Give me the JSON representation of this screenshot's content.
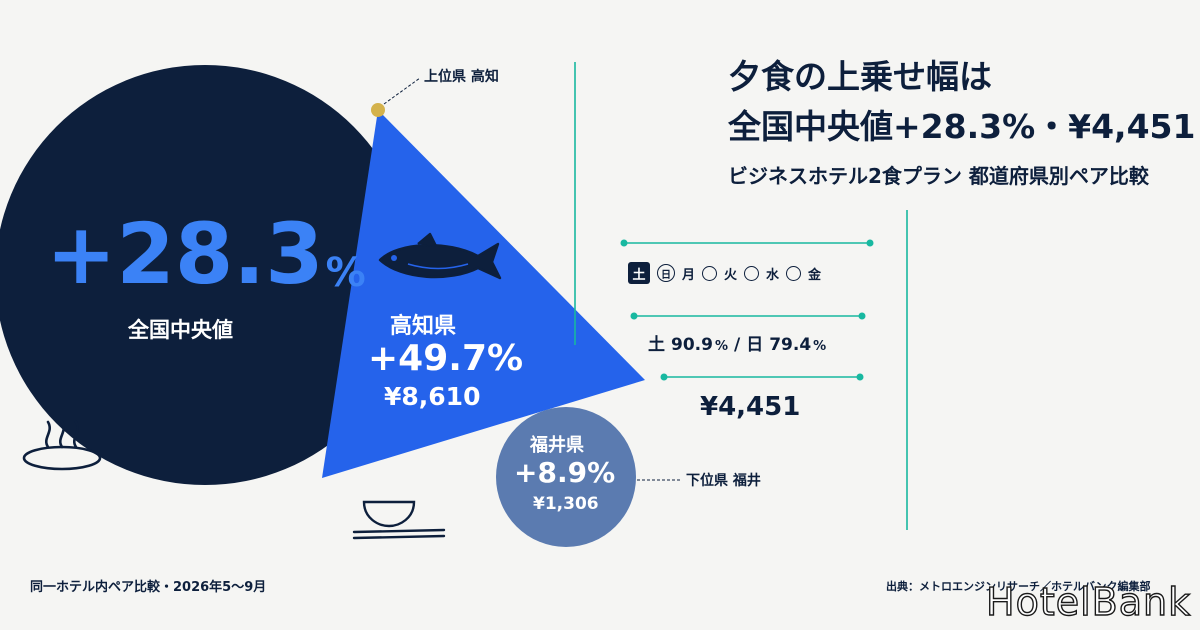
{
  "chart_data": {
    "type": "pie",
    "title": "夕食の上乗せ幅は",
    "headline_value": "全国中央値+28.3%・¥4,451",
    "subtitle": "ビジネスホテル2食プラン 都道府県別ペア比較",
    "unit": "%",
    "slices": [
      {
        "label": "全国中央値",
        "value": 28.3,
        "value_text": "+28.3",
        "unit": "%",
        "color": "#0d1f3c"
      },
      {
        "label": "高知県",
        "value": 49.7,
        "value_text": "+49.7%",
        "amount": "¥8,610",
        "rank_label": "上位県 高知",
        "color": "#2563eb"
      },
      {
        "label": "福井県",
        "value": 8.9,
        "value_text": "+8.9%",
        "amount": "¥1,306",
        "rank_label": "下位県 福井",
        "color": "#5b7bb0"
      }
    ]
  },
  "days": {
    "items": [
      {
        "label": "土",
        "state": "active"
      },
      {
        "label": "日",
        "state": "circled"
      },
      {
        "label": "月",
        "state": "plain"
      },
      {
        "label": "",
        "state": "circle"
      },
      {
        "label": "火",
        "state": "plain"
      },
      {
        "label": "",
        "state": "circle"
      },
      {
        "label": "水",
        "state": "plain"
      },
      {
        "label": "",
        "state": "circle"
      },
      {
        "label": "金",
        "state": "plain"
      }
    ]
  },
  "stats": {
    "sat_label": "土",
    "sat_value": "90.9",
    "separator": "/",
    "sun_label": "日",
    "sun_value": "79.4",
    "pct": "%",
    "median_amount": "¥4,451"
  },
  "footer": {
    "left": "同一ホテル内ペア比較・2026年5～9月",
    "right": "出典：メトロエンジンリサーチ／ホテルバンク編集部",
    "brand": "HotelBank"
  },
  "colors": {
    "navy": "#0d1f3c",
    "blue": "#2563eb",
    "light_blue": "#3b82f6",
    "slate": "#5b7bb0",
    "teal": "#18b8a0",
    "gold": "#d4b24c",
    "background": "#f5f5f3"
  },
  "icons": [
    "tuna-fish-icon",
    "hot-spring-icon",
    "rice-bowl-chopsticks-icon",
    "gold-dot-marker"
  ]
}
